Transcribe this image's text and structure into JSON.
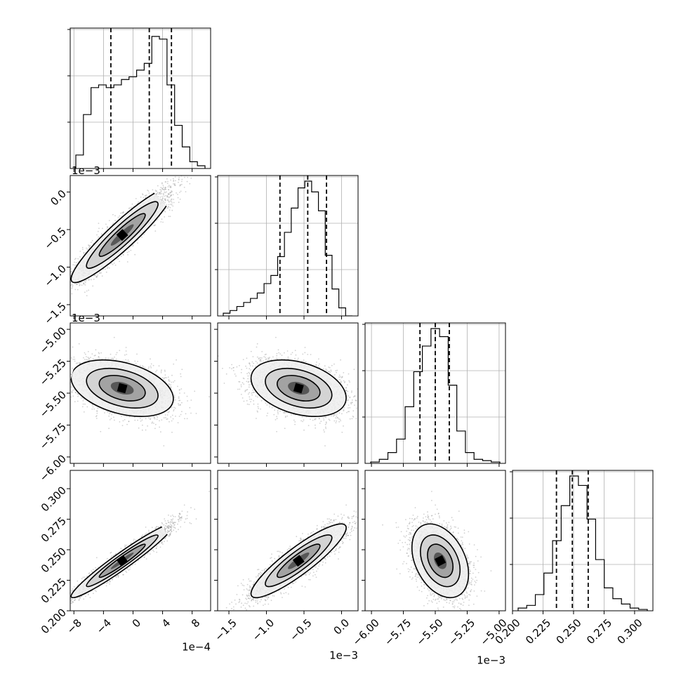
{
  "figure": {
    "type": "corner-plot"
  },
  "chart_data": {
    "type": "corner",
    "parameters": [
      {
        "range": [
          -8.5,
          10.5
        ],
        "ticks": [
          -8,
          -4,
          0,
          4,
          8
        ],
        "tick_labels": [
          "−8",
          "−4",
          "0",
          "4",
          "8"
        ],
        "offset_label": "1e−4",
        "quantiles": [
          -3.0,
          2.2,
          5.2
        ],
        "center": 3,
        "spread": 5.5
      },
      {
        "range": [
          -1.65,
          0.22
        ],
        "ticks": [
          -1.5,
          -1.0,
          -0.5,
          0.0
        ],
        "tick_labels": [
          "−1.5",
          "−1.0",
          "−0.5",
          "0.0"
        ],
        "offset_label": "1e−3",
        "quantiles": [
          -0.82,
          -0.45,
          -0.2
        ],
        "center": -0.35,
        "spread": 0.4
      },
      {
        "range": [
          -6.05,
          -4.95
        ],
        "ticks": [
          -6.0,
          -5.75,
          -5.5,
          -5.25,
          -5.0
        ],
        "tick_labels": [
          "−6.00",
          "−5.75",
          "−5.50",
          "−5.25",
          "−5.00"
        ],
        "offset_label": "1e−3",
        "quantiles": [
          -5.62,
          -5.5,
          -5.39
        ],
        "center": -5.5,
        "spread": 0.12
      },
      {
        "range": [
          0.2,
          0.315
        ],
        "ticks": [
          0.2,
          0.225,
          0.25,
          0.275,
          0.3
        ],
        "tick_labels": [
          "0.200",
          "0.225",
          "0.250",
          "0.275",
          "0.300"
        ],
        "offset_label": "",
        "quantiles": [
          0.236,
          0.249,
          0.262
        ],
        "center": 0.249,
        "spread": 0.014
      }
    ],
    "histograms": [
      [
        0.1,
        0.4,
        0.6,
        0.62,
        0.6,
        0.62,
        0.66,
        0.68,
        0.73,
        0.78,
        0.98,
        0.96,
        0.62,
        0.32,
        0.16,
        0.05,
        0.02
      ],
      [
        0.02,
        0.04,
        0.07,
        0.1,
        0.13,
        0.17,
        0.24,
        0.3,
        0.44,
        0.62,
        0.8,
        0.95,
        1.0,
        0.92,
        0.78,
        0.45,
        0.2,
        0.06,
        0.0
      ],
      [
        0.01,
        0.03,
        0.08,
        0.18,
        0.42,
        0.68,
        0.87,
        1.0,
        0.94,
        0.58,
        0.24,
        0.08,
        0.03,
        0.02,
        0.01
      ],
      [
        0.02,
        0.04,
        0.12,
        0.28,
        0.52,
        0.78,
        1.0,
        0.93,
        0.68,
        0.38,
        0.17,
        0.09,
        0.05,
        0.02,
        0.01
      ]
    ],
    "grid": true
  }
}
